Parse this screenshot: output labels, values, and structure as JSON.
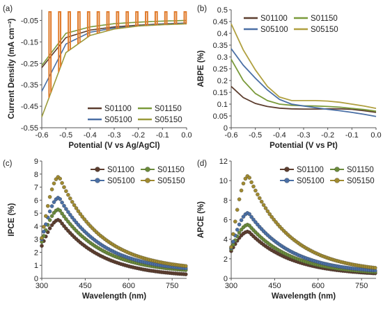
{
  "chart_data": [
    {
      "panel": "(a)",
      "type": "line",
      "xlabel": "Potential (V vs Ag/AgCl)",
      "ylabel": "Current Density (mA cm⁻²)",
      "xlim": [
        -0.6,
        0.0
      ],
      "ylim": [
        -0.55,
        0.0
      ],
      "xticks": [
        "-0.6",
        "-0.5",
        "-0.4",
        "-0.3",
        "-0.2",
        "-0.1",
        "0.0"
      ],
      "yticks": [
        "-0.05",
        "-0.15",
        "-0.25",
        "-0.35",
        "-0.45",
        "-0.55"
      ],
      "legend_position": "bottom-right",
      "legend_columns": 2,
      "note": "chopped-light linear sweep voltammetry",
      "series": [
        {
          "name": "S01100",
          "color": "#5c3d2e",
          "dark": [
            [
              -0.6,
              -0.27
            ],
            [
              -0.5,
              -0.13
            ],
            [
              -0.4,
              -0.095
            ],
            [
              -0.3,
              -0.08
            ],
            [
              -0.2,
              -0.072
            ],
            [
              -0.1,
              -0.066
            ],
            [
              0.0,
              -0.062
            ]
          ]
        },
        {
          "name": "S01150",
          "color": "#7a9a3a",
          "dark": [
            [
              -0.6,
              -0.26
            ],
            [
              -0.5,
              -0.11
            ],
            [
              -0.4,
              -0.08
            ],
            [
              -0.3,
              -0.065
            ],
            [
              -0.2,
              -0.058
            ],
            [
              -0.1,
              -0.053
            ],
            [
              0.0,
              -0.05
            ]
          ]
        },
        {
          "name": "S05100",
          "color": "#4a6fa5",
          "dark": [
            [
              -0.6,
              -0.38
            ],
            [
              -0.5,
              -0.16
            ],
            [
              -0.4,
              -0.105
            ],
            [
              -0.3,
              -0.085
            ],
            [
              -0.2,
              -0.075
            ],
            [
              -0.1,
              -0.068
            ],
            [
              0.0,
              -0.063
            ]
          ]
        },
        {
          "name": "S05150",
          "color": "#9a9a3a",
          "dark": [
            [
              -0.6,
              -0.5
            ],
            [
              -0.5,
              -0.2
            ],
            [
              -0.4,
              -0.12
            ],
            [
              -0.3,
              -0.09
            ],
            [
              -0.2,
              -0.076
            ],
            [
              -0.1,
              -0.07
            ],
            [
              0.0,
              -0.066
            ]
          ]
        }
      ],
      "light_on": {
        "color": "#e07a2a",
        "value": -0.01
      }
    },
    {
      "panel": "(b)",
      "type": "line",
      "xlabel": "Potential (V vs Pt)",
      "ylabel": "ABPE (%)",
      "xlim": [
        -0.6,
        0.0
      ],
      "ylim": [
        0,
        0.5
      ],
      "xticks": [
        "-0.6",
        "-0.5",
        "-0.4",
        "-0.3",
        "-0.2",
        "-0.1",
        "0.0"
      ],
      "yticks": [
        "0",
        "0.05",
        "0.1",
        "0.15",
        "0.2",
        "0.25",
        "0.3",
        "0.35",
        "0.4",
        "0.45",
        "0.5"
      ],
      "legend_position": "top-right",
      "legend_columns": 2,
      "series": [
        {
          "name": "S01100",
          "color": "#5c3d2e",
          "points": [
            [
              -0.6,
              0.175
            ],
            [
              -0.55,
              0.128
            ],
            [
              -0.5,
              0.103
            ],
            [
              -0.45,
              0.09
            ],
            [
              -0.4,
              0.083
            ],
            [
              -0.35,
              0.08
            ],
            [
              -0.3,
              0.079
            ],
            [
              -0.25,
              0.079
            ],
            [
              -0.2,
              0.08
            ],
            [
              -0.15,
              0.08
            ],
            [
              -0.1,
              0.078
            ],
            [
              -0.05,
              0.072
            ],
            [
              0.0,
              0.065
            ]
          ]
        },
        {
          "name": "S01150",
          "color": "#7a9a3a",
          "points": [
            [
              -0.6,
              0.29
            ],
            [
              -0.55,
              0.2
            ],
            [
              -0.5,
              0.145
            ],
            [
              -0.45,
              0.115
            ],
            [
              -0.4,
              0.1
            ],
            [
              -0.35,
              0.095
            ],
            [
              -0.3,
              0.093
            ],
            [
              -0.25,
              0.092
            ],
            [
              -0.2,
              0.09
            ],
            [
              -0.15,
              0.087
            ],
            [
              -0.1,
              0.082
            ],
            [
              -0.05,
              0.077
            ],
            [
              0.0,
              0.07
            ]
          ]
        },
        {
          "name": "S05100",
          "color": "#4a6fa5",
          "points": [
            [
              -0.6,
              0.335
            ],
            [
              -0.55,
              0.265
            ],
            [
              -0.5,
              0.21
            ],
            [
              -0.45,
              0.16
            ],
            [
              -0.4,
              0.12
            ],
            [
              -0.35,
              0.1
            ],
            [
              -0.3,
              0.092
            ],
            [
              -0.25,
              0.085
            ],
            [
              -0.2,
              0.078
            ],
            [
              -0.15,
              0.072
            ],
            [
              -0.1,
              0.065
            ],
            [
              -0.05,
              0.057
            ],
            [
              0.0,
              0.048
            ]
          ]
        },
        {
          "name": "S05150",
          "color": "#b0a040",
          "points": [
            [
              -0.6,
              0.44
            ],
            [
              -0.55,
              0.33
            ],
            [
              -0.5,
              0.245
            ],
            [
              -0.45,
              0.175
            ],
            [
              -0.4,
              0.13
            ],
            [
              -0.35,
              0.115
            ],
            [
              -0.3,
              0.115
            ],
            [
              -0.25,
              0.115
            ],
            [
              -0.2,
              0.113
            ],
            [
              -0.15,
              0.108
            ],
            [
              -0.1,
              0.1
            ],
            [
              -0.05,
              0.092
            ],
            [
              0.0,
              0.082
            ]
          ]
        }
      ]
    },
    {
      "panel": "(c)",
      "type": "scatter",
      "xlabel": "Wavelength (nm)",
      "ylabel": "IPCE (%)",
      "xlim": [
        300,
        800
      ],
      "ylim": [
        0,
        9
      ],
      "xticks": [
        "300",
        "450",
        "600",
        "750"
      ],
      "yticks": [
        "0",
        "1",
        "2",
        "3",
        "4",
        "5",
        "6",
        "7",
        "8",
        "9"
      ],
      "legend_position": "top-right",
      "legend_columns": 2,
      "peak_nm": 360,
      "series": [
        {
          "name": "S01100",
          "color": "#5c3d2e",
          "peak": 4.5,
          "start": 2.5,
          "end": 0.1
        },
        {
          "name": "S01150",
          "color": "#6a8a3a",
          "peak": 5.3,
          "start": 2.8,
          "end": 0.4
        },
        {
          "name": "S05100",
          "color": "#4a6fa5",
          "peak": 6.2,
          "start": 3.0,
          "end": 0.5
        },
        {
          "name": "S05150",
          "color": "#a08a30",
          "peak": 7.8,
          "start": 3.1,
          "end": 0.6
        }
      ]
    },
    {
      "panel": "(d)",
      "type": "scatter",
      "xlabel": "Wavelength (nm)",
      "ylabel": "APCE (%)",
      "xlim": [
        300,
        800
      ],
      "ylim": [
        0,
        12
      ],
      "xticks": [
        "300",
        "450",
        "600",
        "750"
      ],
      "yticks": [
        "0",
        "2",
        "4",
        "6",
        "8",
        "10",
        "12"
      ],
      "legend_position": "top-right",
      "legend_columns": 2,
      "peak_nm": 360,
      "series": [
        {
          "name": "S01100",
          "color": "#5c3d2e",
          "peak": 4.8,
          "start": 2.8,
          "end": 0.3
        },
        {
          "name": "S01150",
          "color": "#6a8a3a",
          "peak": 5.5,
          "start": 3.0,
          "end": 0.4
        },
        {
          "name": "S05100",
          "color": "#4a6fa5",
          "peak": 6.7,
          "start": 3.1,
          "end": 0.5
        },
        {
          "name": "S05150",
          "color": "#a08a30",
          "peak": 10.5,
          "start": 3.2,
          "end": 0.6
        }
      ]
    }
  ]
}
